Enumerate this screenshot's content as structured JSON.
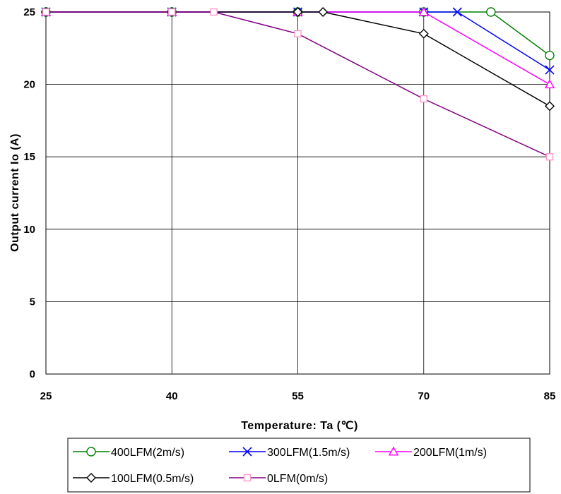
{
  "chart_data": {
    "type": "line",
    "xlabel": "Temperature: Ta (℃)",
    "ylabel": "Output current Io (A)",
    "xlim": [
      25,
      85
    ],
    "ylim": [
      0,
      25
    ],
    "x_ticks": [
      25,
      40,
      55,
      70,
      85
    ],
    "y_ticks": [
      0,
      5,
      10,
      15,
      20,
      25
    ],
    "grid": true,
    "legend_position": "bottom",
    "series": [
      {
        "name": "400LFM(2m/s)",
        "color": "#008000",
        "marker": "circle",
        "x": [
          25,
          40,
          55,
          70,
          78,
          85
        ],
        "y": [
          25,
          25,
          25,
          25,
          25,
          22
        ]
      },
      {
        "name": "300LFM(1.5m/s)",
        "color": "#0000ff",
        "marker": "x",
        "x": [
          25,
          40,
          55,
          70,
          74,
          85
        ],
        "y": [
          25,
          25,
          25,
          25,
          25,
          21
        ]
      },
      {
        "name": "200LFM(1m/s)",
        "color": "#ff00ff",
        "marker": "triangle",
        "x": [
          25,
          40,
          55,
          70,
          85
        ],
        "y": [
          25,
          25,
          25,
          25,
          20
        ]
      },
      {
        "name": "100LFM(0.5m/s)",
        "color": "#000000",
        "marker": "diamond",
        "x": [
          25,
          40,
          55,
          58,
          70,
          85
        ],
        "y": [
          25,
          25,
          25,
          25,
          23.5,
          18.5
        ]
      },
      {
        "name": "0LFM(0m/s)",
        "color": "#800080",
        "marker": "square",
        "marker_color": "#ff99cc",
        "x": [
          25,
          40,
          45,
          55,
          70,
          85
        ],
        "y": [
          25,
          25,
          25,
          23.5,
          19,
          15
        ]
      }
    ]
  }
}
